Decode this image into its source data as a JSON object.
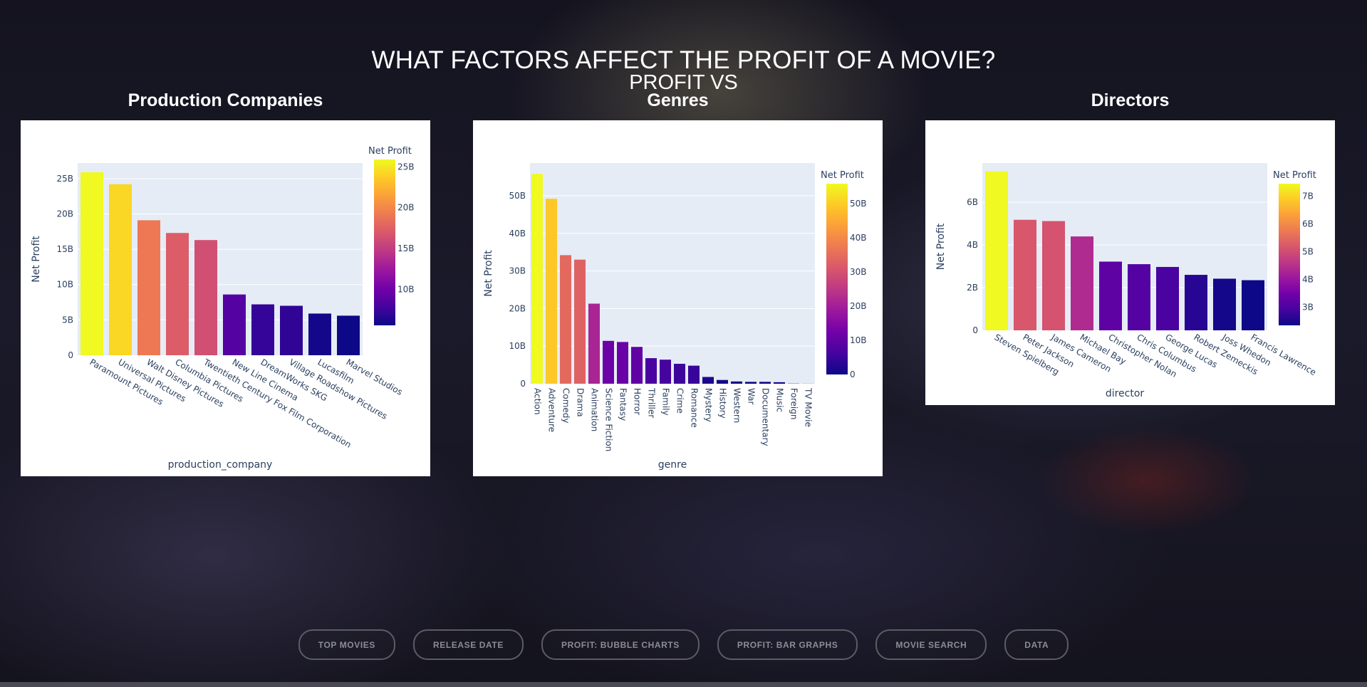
{
  "page": {
    "title": "WHAT FACTORS AFFECT THE PROFIT OF A MOVIE?",
    "subtitle": "PROFIT VS"
  },
  "nav": {
    "items": [
      "TOP MOVIES",
      "RELEASE DATE",
      "PROFIT: BUBBLE CHARTS",
      "PROFIT: BAR GRAPHS",
      "MOVIE SEARCH",
      "DATA"
    ]
  },
  "chart_data": [
    {
      "type": "bar",
      "title": "Production Companies",
      "xlabel": "production_company",
      "ylabel": "Net Profit",
      "colorbar_title": "Net Profit",
      "categories": [
        "Paramount Pictures",
        "Universal Pictures",
        "Walt Disney Pictures",
        "Columbia Pictures",
        "Twentieth Century Fox Film Corporation",
        "New Line Cinema",
        "DreamWorks SKG",
        "Village Roadshow Pictures",
        "Lucasfilm",
        "Marvel Studios"
      ],
      "values": [
        25.9,
        24.2,
        19.1,
        17.3,
        16.3,
        8.6,
        7.2,
        7.0,
        5.9,
        5.6
      ],
      "value_unit": "billions",
      "ylim": [
        0,
        27.2
      ],
      "yticks": [
        0,
        5,
        10,
        15,
        20,
        25
      ],
      "ytick_labels": [
        "0",
        "5B",
        "10B",
        "15B",
        "20B",
        "25B"
      ],
      "color_range": [
        5.6,
        25.9
      ],
      "colorbar_ticks": [
        10,
        15,
        20,
        25
      ],
      "colorbar_labels": [
        "10B",
        "15B",
        "20B",
        "25B"
      ],
      "colorscale": "plasma",
      "xtick_angle": 30
    },
    {
      "type": "bar",
      "title": "Genres",
      "xlabel": "genre",
      "ylabel": "Net Profit",
      "colorbar_title": "Net Profit",
      "categories": [
        "Action",
        "Adventure",
        "Comedy",
        "Drama",
        "Animation",
        "Science Fiction",
        "Fantasy",
        "Horror",
        "Thriller",
        "Family",
        "Crime",
        "Romance",
        "Mystery",
        "History",
        "Western",
        "War",
        "Documentary",
        "Music",
        "Foreign",
        "TV Movie"
      ],
      "values": [
        55.8,
        49.2,
        34.2,
        33.0,
        21.3,
        11.4,
        11.1,
        9.8,
        6.8,
        6.4,
        5.3,
        4.8,
        1.8,
        1.0,
        0.6,
        0.5,
        0.5,
        0.4,
        0.05,
        0.02
      ],
      "value_unit": "billions",
      "ylim": [
        0,
        58.7
      ],
      "yticks": [
        0,
        10,
        20,
        30,
        40,
        50
      ],
      "ytick_labels": [
        "0",
        "10B",
        "20B",
        "30B",
        "40B",
        "50B"
      ],
      "color_range": [
        0,
        55.8
      ],
      "colorbar_ticks": [
        0,
        10,
        20,
        30,
        40,
        50
      ],
      "colorbar_labels": [
        "0",
        "10B",
        "20B",
        "30B",
        "40B",
        "50B"
      ],
      "colorscale": "plasma",
      "xtick_angle": 90
    },
    {
      "type": "bar",
      "title": "Directors",
      "xlabel": "director",
      "ylabel": "Net Profit",
      "colorbar_title": "Net Profit",
      "categories": [
        "Steven Spielberg",
        "Peter Jackson",
        "James Cameron",
        "Michael Bay",
        "Christopher Nolan",
        "Chris Columbus",
        "George Lucas",
        "Robert Zemeckis",
        "Joss Whedon",
        "Francis Lawrence"
      ],
      "values": [
        7.45,
        5.18,
        5.12,
        4.4,
        3.22,
        3.1,
        2.97,
        2.6,
        2.42,
        2.35
      ],
      "value_unit": "billions",
      "ylim": [
        0,
        7.84
      ],
      "yticks": [
        0,
        2,
        4,
        6
      ],
      "ytick_labels": [
        "0",
        "2B",
        "4B",
        "6B"
      ],
      "color_range": [
        2.35,
        7.45
      ],
      "colorbar_ticks": [
        3,
        4,
        5,
        6,
        7
      ],
      "colorbar_labels": [
        "3B",
        "4B",
        "5B",
        "6B",
        "7B"
      ],
      "colorscale": "plasma",
      "xtick_angle": 30
    }
  ]
}
